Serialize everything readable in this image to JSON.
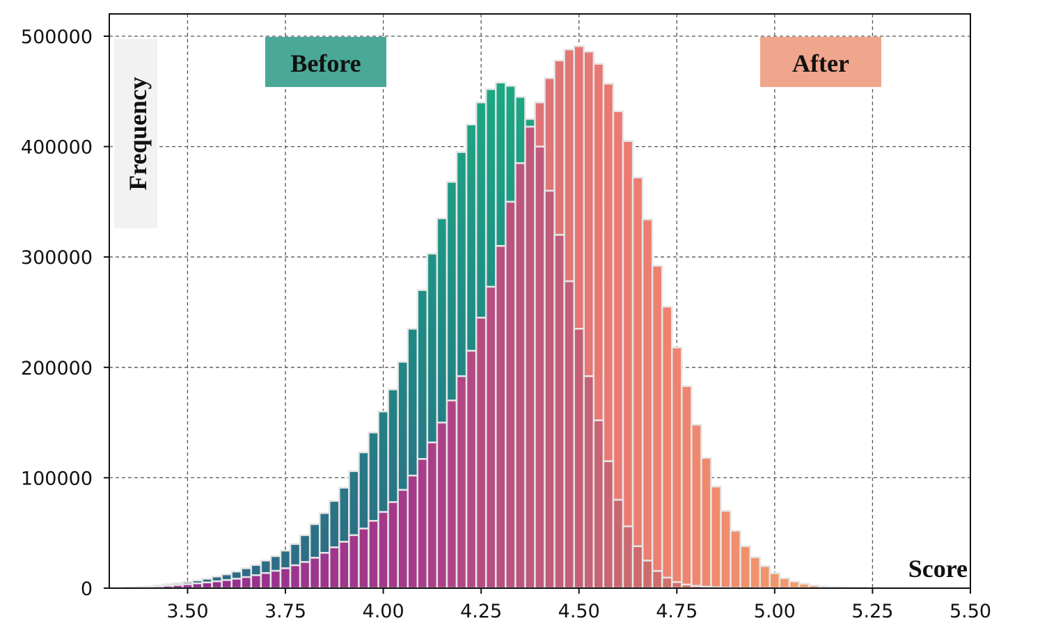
{
  "chart_data": {
    "type": "bar",
    "subtype": "overlaid-histogram",
    "xlabel": "Score",
    "ylabel": "Frequency",
    "xlim": [
      3.3,
      5.5
    ],
    "ylim": [
      0,
      500000
    ],
    "xticks": [
      3.5,
      3.75,
      4.0,
      4.25,
      4.5,
      4.75,
      5.0,
      5.25,
      5.5
    ],
    "xtick_labels": [
      "3.50",
      "3.75",
      "4.00",
      "4.25",
      "4.50",
      "4.75",
      "5.00",
      "5.25",
      "5.50"
    ],
    "yticks": [
      0,
      100000,
      200000,
      300000,
      400000,
      500000
    ],
    "ytick_labels": [
      "0",
      "100000",
      "200000",
      "300000",
      "400000",
      "500000"
    ],
    "grid": true,
    "legend": {
      "before_position": "top-left",
      "after_position": "top-right"
    },
    "series": [
      {
        "name": "Before",
        "color": "#1a9e84",
        "legend_color": "#4aa897",
        "x": [
          3.35,
          3.375,
          3.4,
          3.425,
          3.45,
          3.475,
          3.5,
          3.525,
          3.55,
          3.575,
          3.6,
          3.625,
          3.65,
          3.675,
          3.7,
          3.725,
          3.75,
          3.775,
          3.8,
          3.825,
          3.85,
          3.875,
          3.9,
          3.925,
          3.95,
          3.975,
          4.0,
          4.025,
          4.05,
          4.075,
          4.1,
          4.125,
          4.15,
          4.175,
          4.2,
          4.225,
          4.25,
          4.275,
          4.3,
          4.325,
          4.35,
          4.375,
          4.4,
          4.425,
          4.45,
          4.475,
          4.5,
          4.525,
          4.55,
          4.575,
          4.6,
          4.625,
          4.65,
          4.675,
          4.7,
          4.725,
          4.75,
          4.775,
          4.8,
          4.825,
          4.85,
          4.875,
          4.9,
          4.925,
          4.95,
          4.975,
          5.0,
          5.025,
          5.05,
          5.075,
          5.1,
          5.125,
          5.15,
          5.175,
          5.2,
          5.225,
          5.25,
          5.275,
          5.3,
          5.325
        ],
        "values": [
          500,
          1000,
          1500,
          2500,
          3500,
          4500,
          5500,
          7000,
          8500,
          10500,
          12500,
          15000,
          18000,
          21000,
          25000,
          29000,
          34000,
          40000,
          48000,
          58000,
          68000,
          79000,
          91000,
          106000,
          123000,
          141000,
          160000,
          180000,
          205000,
          235000,
          270000,
          303000,
          335000,
          368000,
          395000,
          420000,
          440000,
          452000,
          458000,
          455000,
          445000,
          425000,
          400000,
          360000,
          320000,
          278000,
          235000,
          192000,
          152000,
          115000,
          80000,
          56000,
          38000,
          25000,
          15500,
          9500,
          5500,
          3300,
          2000,
          1200,
          700,
          400,
          200,
          100,
          50,
          20,
          10,
          5,
          2,
          1,
          0,
          0,
          0,
          0,
          0,
          0,
          0,
          0,
          0,
          0
        ]
      },
      {
        "name": "After",
        "color": "#ef8a68",
        "legend_color": "#f0a68c",
        "x": [
          3.35,
          3.375,
          3.4,
          3.425,
          3.45,
          3.475,
          3.5,
          3.525,
          3.55,
          3.575,
          3.6,
          3.625,
          3.65,
          3.675,
          3.7,
          3.725,
          3.75,
          3.775,
          3.8,
          3.825,
          3.85,
          3.875,
          3.9,
          3.925,
          3.95,
          3.975,
          4.0,
          4.025,
          4.05,
          4.075,
          4.1,
          4.125,
          4.15,
          4.175,
          4.2,
          4.225,
          4.25,
          4.275,
          4.3,
          4.325,
          4.35,
          4.375,
          4.4,
          4.425,
          4.45,
          4.475,
          4.5,
          4.525,
          4.55,
          4.575,
          4.6,
          4.625,
          4.65,
          4.675,
          4.7,
          4.725,
          4.75,
          4.775,
          4.8,
          4.825,
          4.85,
          4.875,
          4.9,
          4.925,
          4.95,
          4.975,
          5.0,
          5.025,
          5.05,
          5.075,
          5.1,
          5.125,
          5.15,
          5.175,
          5.2,
          5.225,
          5.25,
          5.275,
          5.3,
          5.325
        ],
        "values": [
          500,
          800,
          1200,
          1700,
          2200,
          2800,
          3500,
          4300,
          5200,
          6200,
          7300,
          8500,
          10000,
          11700,
          13700,
          15700,
          18000,
          20700,
          23700,
          27500,
          32000,
          37000,
          42000,
          48000,
          54000,
          61000,
          69000,
          78000,
          89000,
          102000,
          117000,
          132000,
          150000,
          170000,
          192000,
          215000,
          245000,
          273000,
          310000,
          350000,
          385000,
          418000,
          440000,
          462000,
          478000,
          488000,
          491000,
          486000,
          475000,
          457000,
          432000,
          405000,
          372000,
          334000,
          292000,
          255000,
          218000,
          183000,
          148000,
          118000,
          92000,
          70000,
          52000,
          38000,
          28000,
          20000,
          13500,
          9000,
          6000,
          4000,
          2500,
          1600,
          1000,
          600,
          300,
          150,
          0,
          0,
          0,
          0
        ]
      }
    ]
  }
}
